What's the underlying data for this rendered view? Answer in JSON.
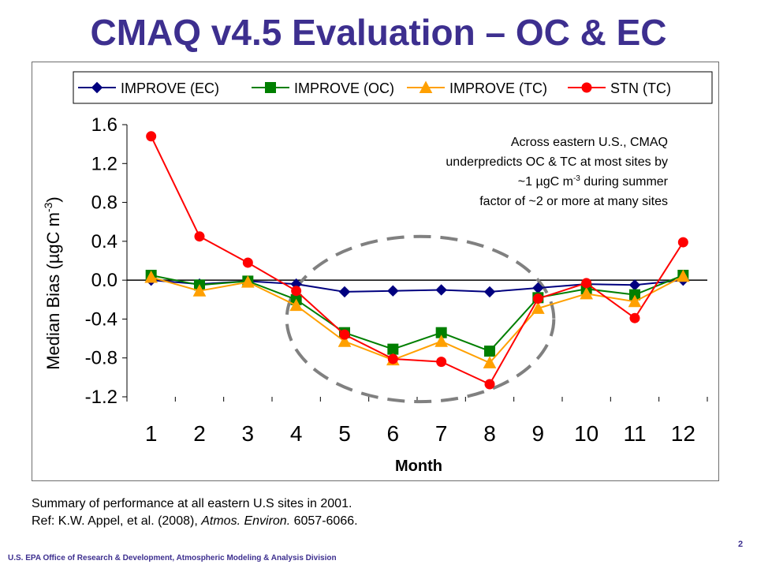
{
  "slide": {
    "title": "CMAQ v4.5 Evaluation – OC & EC",
    "summary_line1": "Summary of performance at all eastern U.S sites in 2001.",
    "ref_prefix": "Ref: K.W. Appel, et al. (2008), ",
    "ref_journal": "Atmos. Environ.",
    "ref_pages": " 6057-6066.",
    "footer": "U.S. EPA Office of Research & Development, Atmospheric Modeling & Analysis Division",
    "page_number": "2"
  },
  "chart_data": {
    "type": "line",
    "title": "",
    "xlabel": "Month",
    "ylabel_main": "Median Bias (µgC m",
    "ylabel_sup": "-3",
    "ylabel_close": ")",
    "categories": [
      "1",
      "2",
      "3",
      "4",
      "5",
      "6",
      "7",
      "8",
      "9",
      "10",
      "11",
      "12"
    ],
    "ylim": [
      -1.2,
      1.6
    ],
    "yticks": [
      1.6,
      1.2,
      0.8,
      0.4,
      0.0,
      -0.4,
      -0.8,
      -1.2
    ],
    "ytick_labels": [
      "1.6",
      "1.2",
      "0.8",
      "0.4",
      "0.0",
      "-0.4",
      "-0.8",
      "-1.2"
    ],
    "zero_line": true,
    "legend_position": "top",
    "series": [
      {
        "name": "IMPROVE (EC)",
        "color": "#00007f",
        "marker": "diamond",
        "values": [
          0.0,
          -0.04,
          -0.01,
          -0.04,
          -0.12,
          -0.11,
          -0.1,
          -0.12,
          -0.08,
          -0.04,
          -0.05,
          0.0
        ]
      },
      {
        "name": "IMPROVE (OC)",
        "color": "#007f00",
        "marker": "square",
        "values": [
          0.05,
          -0.05,
          -0.01,
          -0.2,
          -0.54,
          -0.71,
          -0.54,
          -0.73,
          -0.18,
          -0.09,
          -0.15,
          0.05
        ]
      },
      {
        "name": "IMPROVE (TC)",
        "color": "#ffa000",
        "marker": "triangle",
        "values": [
          0.03,
          -0.11,
          -0.02,
          -0.26,
          -0.63,
          -0.82,
          -0.63,
          -0.85,
          -0.29,
          -0.14,
          -0.22,
          0.04
        ]
      },
      {
        "name": "STN (TC)",
        "color": "#ff0000",
        "marker": "circle",
        "values": [
          1.48,
          0.45,
          0.18,
          -0.11,
          -0.56,
          -0.81,
          -0.84,
          -1.07,
          -0.19,
          -0.03,
          -0.39,
          0.39
        ]
      }
    ],
    "annotation": {
      "line1": "Across eastern U.S., CMAQ",
      "line2": "underpredicts OC & TC at most sites by",
      "line3_pre": "~1 µgC m",
      "line3_sup": "-3",
      "line3_post": " during summer",
      "line4": "factor of ~2 or more at many sites"
    },
    "highlight_ellipse": {
      "style": "dashed",
      "color": "#808080",
      "month_range": [
        4,
        9
      ]
    }
  }
}
